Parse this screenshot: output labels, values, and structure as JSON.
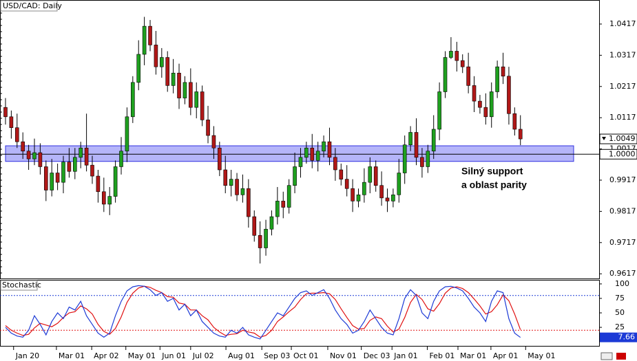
{
  "chart_data": [
    {
      "type": "candlestick",
      "title": "USD/CAD: Daily",
      "open": [
        1.015,
        1.012,
        1.0085,
        1.004,
        1.001,
        0.9985,
        1.0005,
        0.996,
        0.9885,
        0.994,
        0.991,
        0.9975,
        0.9945,
        0.999,
        1.002,
        0.9965,
        0.993,
        0.988,
        0.984,
        0.9865,
        0.996,
        1.001,
        1.012,
        1.023,
        1.032,
        1.041,
        1.035,
        1.028,
        1.031,
        1.022,
        1.026,
        1.018,
        1.023,
        1.015,
        1.02,
        1.011,
        1.006,
        1.002,
        0.995,
        0.99,
        0.992,
        0.987,
        0.989,
        0.98,
        0.974,
        0.97,
        0.976,
        0.98,
        0.985,
        0.983,
        0.99,
        0.996,
        0.999,
        1.002,
        0.998,
        1.001,
        1.004,
        0.999,
        0.995,
        0.992,
        0.989,
        0.985,
        0.987,
        0.991,
        0.996,
        0.99,
        0.986,
        0.985,
        0.987,
        0.994,
        1.003,
        1.007,
        0.999,
        0.996,
        1.001,
        1.008,
        1.02,
        1.031,
        1.033,
        1.03,
        1.028,
        1.022,
        1.017,
        1.015,
        1.012,
        1.02,
        1.028,
        1.025,
        1.013,
        1.008
      ],
      "high": [
        1.018,
        1.014,
        1.013,
        1.007,
        1.003,
        1.005,
        1.0035,
        0.998,
        0.9985,
        0.997,
        0.9995,
        1.002,
        1.002,
        1.004,
        1.013,
        0.9995,
        0.995,
        0.9925,
        0.9895,
        0.998,
        1.0055,
        1.015,
        1.025,
        1.0365,
        1.044,
        1.043,
        1.0395,
        1.034,
        1.033,
        1.0305,
        1.029,
        1.025,
        1.0275,
        1.023,
        1.022,
        1.0155,
        1.009,
        1.004,
        0.9995,
        0.995,
        0.994,
        0.9935,
        0.992,
        0.982,
        0.9785,
        0.979,
        0.982,
        0.9895,
        0.988,
        0.992,
        1.0005,
        1.002,
        1.004,
        1.0065,
        1.004,
        1.006,
        1.0085,
        1.002,
        0.997,
        0.9965,
        0.992,
        0.989,
        0.9955,
        0.999,
        0.998,
        0.9945,
        0.989,
        0.989,
        0.9985,
        1.006,
        1.009,
        1.0115,
        1.002,
        1.003,
        1.0125,
        1.023,
        1.033,
        1.0375,
        1.036,
        1.032,
        1.0325,
        1.025,
        1.019,
        1.0195,
        1.023,
        1.03,
        1.0325,
        1.028,
        1.015,
        1.0125
      ],
      "low": [
        1.0095,
        1.005,
        1.002,
        0.9985,
        0.995,
        0.9965,
        0.9935,
        0.985,
        0.9865,
        0.9885,
        0.9875,
        0.9925,
        0.992,
        0.9955,
        0.9945,
        0.9905,
        0.9845,
        0.9815,
        0.9805,
        0.9845,
        0.9935,
        0.9975,
        1.01,
        1.0205,
        1.0285,
        1.033,
        1.0255,
        1.0245,
        1.02,
        1.0195,
        1.0145,
        1.016,
        1.0125,
        1.0115,
        1.009,
        1.0035,
        0.9985,
        0.993,
        0.9875,
        0.9865,
        0.985,
        0.9845,
        0.9765,
        0.972,
        0.965,
        0.9675,
        0.974,
        0.9775,
        0.9795,
        0.981,
        0.9875,
        0.9925,
        0.997,
        0.9955,
        0.9945,
        0.999,
        0.9965,
        0.9915,
        0.99,
        0.9865,
        0.9815,
        0.983,
        0.9845,
        0.9875,
        0.988,
        0.9835,
        0.9815,
        0.983,
        0.9845,
        0.9905,
        1.001,
        0.9965,
        0.9925,
        0.994,
        0.9985,
        1.0045,
        1.018,
        1.0305,
        1.0265,
        1.026,
        1.0195,
        1.0135,
        1.013,
        1.0095,
        1.0085,
        1.018,
        1.0225,
        1.0095,
        1.006,
        1.0029
      ],
      "close": [
        1.012,
        1.0085,
        1.004,
        1.001,
        0.9985,
        1.0005,
        0.996,
        0.9885,
        0.994,
        0.991,
        0.9975,
        0.9945,
        0.999,
        1.002,
        0.9965,
        0.993,
        0.988,
        0.984,
        0.9865,
        0.996,
        1.001,
        1.012,
        1.023,
        1.032,
        1.041,
        1.035,
        1.028,
        1.031,
        1.022,
        1.026,
        1.018,
        1.023,
        1.015,
        1.02,
        1.011,
        1.006,
        1.002,
        0.995,
        0.99,
        0.992,
        0.987,
        0.989,
        0.98,
        0.974,
        0.97,
        0.976,
        0.98,
        0.985,
        0.983,
        0.99,
        0.996,
        0.999,
        1.002,
        0.998,
        1.001,
        1.004,
        0.999,
        0.995,
        0.992,
        0.989,
        0.985,
        0.987,
        0.991,
        0.996,
        0.99,
        0.986,
        0.985,
        0.987,
        0.994,
        1.003,
        1.007,
        0.999,
        0.996,
        1.001,
        1.008,
        1.02,
        1.031,
        1.033,
        1.03,
        1.028,
        1.022,
        1.017,
        1.015,
        1.012,
        1.02,
        1.028,
        1.025,
        1.013,
        1.008,
        1.0049
      ],
      "up_color": "#1fa01f",
      "down_color": "#b01818",
      "xlim": [
        -0.95,
        102.6
      ],
      "xticks": [
        {
          "value": 1.4,
          "label": "Jan 20"
        },
        {
          "value": 8.8,
          "label": "Mar 01"
        },
        {
          "value": 14.9,
          "label": "Apr 02"
        },
        {
          "value": 20.8,
          "label": "May 01"
        },
        {
          "value": 26.7,
          "label": "Jun 01"
        },
        {
          "value": 32.0,
          "label": "Jul 02"
        },
        {
          "value": 38.1,
          "label": "Aug 01"
        },
        {
          "value": 44.3,
          "label": "Sep 03"
        },
        {
          "value": 49.4,
          "label": "Oct 01"
        },
        {
          "value": 55.7,
          "label": "Nov 01"
        },
        {
          "value": 61.5,
          "label": "Dec 03"
        },
        {
          "value": 66.8,
          "label": "Jan 01"
        },
        {
          "value": 72.9,
          "label": "Feb 01"
        },
        {
          "value": 78.2,
          "label": "Mar 01"
        },
        {
          "value": 83.9,
          "label": "Apr 01"
        },
        {
          "value": 89.9,
          "label": "May 01"
        }
      ],
      "ylim": [
        0.9602,
        1.0494
      ],
      "yticks": [
        1.0417,
        1.0317,
        1.0217,
        1.0117,
        1.0017,
        0.9917,
        0.9817,
        0.9717,
        0.9617
      ],
      "hline": {
        "value": 1,
        "label": "1.0000"
      },
      "zone": [
        0.9977,
        1.0027
      ],
      "zone_color": "#9c9cf7",
      "annotation": [
        "Silný support",
        "a oblast parity"
      ]
    },
    {
      "type": "line",
      "title": "Stochastic",
      "series": [
        {
          "color": "#1c3ad6",
          "values": [
            25,
            15,
            10,
            8,
            20,
            45,
            30,
            12,
            35,
            50,
            40,
            60,
            55,
            70,
            45,
            30,
            15,
            8,
            15,
            45,
            70,
            88,
            95,
            97,
            96,
            90,
            80,
            85,
            70,
            75,
            55,
            65,
            45,
            55,
            35,
            25,
            15,
            10,
            8,
            20,
            15,
            25,
            12,
            8,
            5,
            20,
            35,
            50,
            45,
            60,
            75,
            85,
            88,
            80,
            85,
            90,
            75,
            55,
            40,
            30,
            15,
            20,
            35,
            55,
            40,
            25,
            15,
            12,
            40,
            75,
            90,
            80,
            50,
            40,
            70,
            88,
            95,
            96,
            93,
            88,
            75,
            60,
            50,
            35,
            70,
            88,
            85,
            40,
            15,
            7.66
          ]
        },
        {
          "color": "#e01010",
          "values": [
            28,
            20,
            15,
            11,
            13,
            24,
            32,
            29,
            26,
            32,
            42,
            50,
            52,
            62,
            57,
            48,
            30,
            18,
            13,
            23,
            43,
            68,
            84,
            93,
            96,
            94,
            89,
            85,
            78,
            77,
            67,
            65,
            55,
            55,
            45,
            38,
            25,
            17,
            11,
            13,
            14,
            20,
            17,
            15,
            8,
            11,
            20,
            35,
            43,
            52,
            60,
            73,
            83,
            84,
            84,
            85,
            83,
            73,
            57,
            42,
            28,
            22,
            23,
            37,
            43,
            40,
            27,
            17,
            22,
            42,
            68,
            82,
            73,
            57,
            53,
            66,
            84,
            93,
            95,
            92,
            85,
            74,
            62,
            48,
            52,
            64,
            81,
            71,
            48,
            21
          ]
        }
      ],
      "ylim": [
        -7,
        107
      ],
      "yticks": [
        100,
        75,
        50,
        25
      ],
      "levels": [
        80,
        20
      ],
      "level_colors": [
        "#1c3ad6",
        "#e01010"
      ]
    }
  ]
}
